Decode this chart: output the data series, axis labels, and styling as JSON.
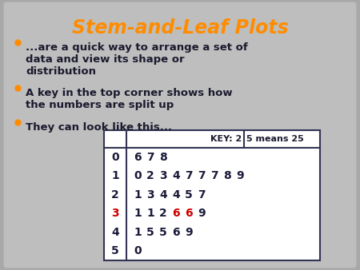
{
  "title": "Stem-and-Leaf Plots",
  "title_color": "#FF8C00",
  "slide_bg": "#BEBEBE",
  "outer_bg": "#A8A8A8",
  "text_color": "#1A1A2E",
  "bullet_color": "#FF8C00",
  "bullet_points": [
    "...are a quick way to arrange a set of\ndata and view its shape or\ndistribution",
    "A key in the top corner shows how\nthe numbers are split up",
    "They can look like this..."
  ],
  "table_bg": "#FFFFFF",
  "table_border": "#333355",
  "stems": [
    "0",
    "1",
    "2",
    "3",
    "4",
    "5"
  ],
  "stem_color_normal": "#1A1A3A",
  "stem_color_special": "#CC0000",
  "special_stem_index": 3,
  "leaves": [
    [
      "6",
      "7",
      "8"
    ],
    [
      "0",
      "2",
      "3",
      "4",
      "7",
      "7",
      "7",
      "8",
      "9"
    ],
    [
      "1",
      "3",
      "4",
      "4",
      "5",
      "7"
    ],
    [
      "1",
      "1",
      "2",
      "6",
      "6",
      "9"
    ],
    [
      "1",
      "5",
      "5",
      "6",
      "9"
    ],
    [
      "0"
    ]
  ],
  "leaf_colors": [
    [
      "#1A1A3A",
      "#1A1A3A",
      "#1A1A3A"
    ],
    [
      "#1A1A3A",
      "#1A1A3A",
      "#1A1A3A",
      "#1A1A3A",
      "#1A1A3A",
      "#1A1A3A",
      "#1A1A3A",
      "#1A1A3A",
      "#1A1A3A"
    ],
    [
      "#1A1A3A",
      "#1A1A3A",
      "#1A1A3A",
      "#1A1A3A",
      "#1A1A3A",
      "#1A1A3A"
    ],
    [
      "#1A1A3A",
      "#1A1A3A",
      "#1A1A3A",
      "#CC0000",
      "#CC0000",
      "#1A1A3A"
    ],
    [
      "#1A1A3A",
      "#1A1A3A",
      "#1A1A3A",
      "#1A1A3A",
      "#1A1A3A"
    ],
    [
      "#1A1A3A"
    ]
  ],
  "key_text_left": "KEY: 2",
  "key_text_right": "5 means 25",
  "line_color": "#333355",
  "figsize": [
    4.5,
    3.38
  ],
  "dpi": 100
}
